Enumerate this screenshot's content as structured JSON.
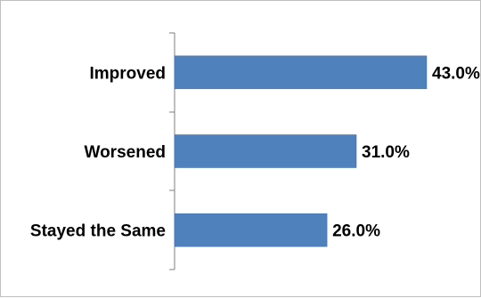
{
  "chart_data": {
    "type": "bar",
    "orientation": "horizontal",
    "categories": [
      "Improved",
      "Worsened",
      "Stayed the Same"
    ],
    "values": [
      43.0,
      31.0,
      26.0
    ],
    "value_labels": [
      "43.0%",
      "31.0%",
      "26.0%"
    ],
    "title": "",
    "xlabel": "",
    "ylabel": "",
    "xlim": [
      0,
      50
    ],
    "grid": false,
    "legend": "none",
    "bar_color": "#4f81bd",
    "bar_border_color": "#3a6aa3",
    "axis_color": "#7f7f7f"
  }
}
